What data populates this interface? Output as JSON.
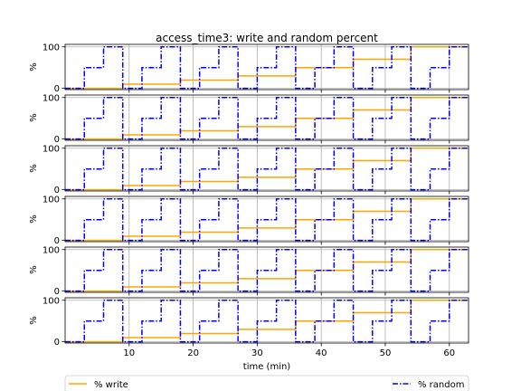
{
  "chart_data": {
    "type": "line",
    "title": "access_time3: write and random percent",
    "xlabel": "time (min)",
    "ylabel": "%",
    "subplot_count": 6,
    "xlim": [
      0,
      63
    ],
    "ylim": [
      -3,
      106
    ],
    "x_ticks": [
      10,
      20,
      30,
      40,
      50,
      60
    ],
    "y_ticks": [
      0,
      100
    ],
    "grid": true,
    "legend": {
      "placement": "bottom",
      "columns": 2
    },
    "series": [
      {
        "name": "% write",
        "color": "#ffa500",
        "style": "solid",
        "points": [
          [
            0,
            0
          ],
          [
            9,
            0
          ],
          [
            9,
            10
          ],
          [
            18,
            10
          ],
          [
            18,
            20
          ],
          [
            27,
            20
          ],
          [
            27,
            30
          ],
          [
            36,
            30
          ],
          [
            36,
            50
          ],
          [
            45,
            50
          ],
          [
            45,
            70
          ],
          [
            54,
            70
          ],
          [
            54,
            100
          ],
          [
            63,
            100
          ]
        ]
      },
      {
        "name": "% random",
        "color": "#0000ff",
        "style": "dashdot",
        "points": [
          [
            0,
            0
          ],
          [
            3,
            0
          ],
          [
            3,
            50
          ],
          [
            6,
            50
          ],
          [
            6,
            100
          ],
          [
            9,
            100
          ],
          [
            9,
            0
          ],
          [
            12,
            0
          ],
          [
            12,
            50
          ],
          [
            15,
            50
          ],
          [
            15,
            100
          ],
          [
            18,
            100
          ],
          [
            18,
            0
          ],
          [
            21,
            0
          ],
          [
            21,
            50
          ],
          [
            24,
            50
          ],
          [
            24,
            100
          ],
          [
            27,
            100
          ],
          [
            27,
            0
          ],
          [
            30,
            0
          ],
          [
            30,
            50
          ],
          [
            33,
            50
          ],
          [
            33,
            100
          ],
          [
            36,
            100
          ],
          [
            36,
            0
          ],
          [
            39,
            0
          ],
          [
            39,
            50
          ],
          [
            42,
            50
          ],
          [
            42,
            100
          ],
          [
            45,
            100
          ],
          [
            45,
            0
          ],
          [
            48,
            0
          ],
          [
            48,
            50
          ],
          [
            51,
            50
          ],
          [
            51,
            100
          ],
          [
            54,
            100
          ],
          [
            54,
            0
          ],
          [
            57,
            0
          ],
          [
            57,
            50
          ],
          [
            60,
            50
          ],
          [
            60,
            100
          ],
          [
            63,
            100
          ]
        ]
      }
    ]
  }
}
